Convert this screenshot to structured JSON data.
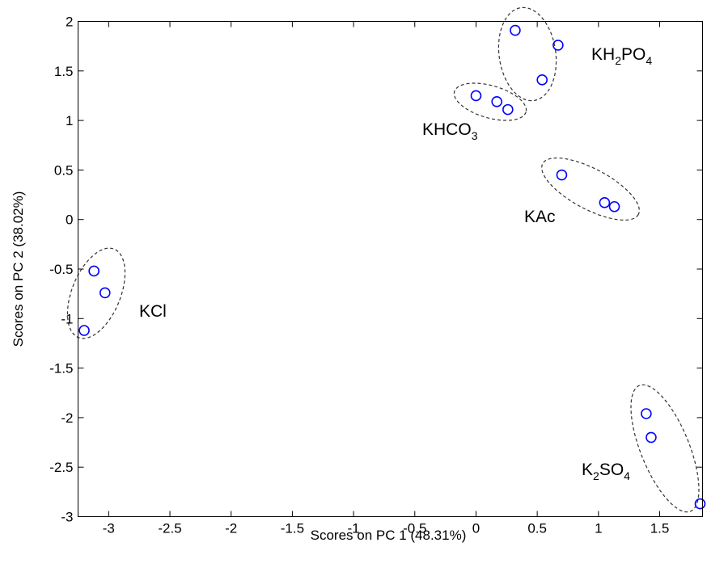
{
  "chart_data": {
    "type": "scatter",
    "xlabel": "Scores on PC 1 (48.31%)",
    "ylabel": "Scores on PC 2 (38.02%)",
    "xlim": [
      -3.25,
      1.85
    ],
    "ylim": [
      -3,
      2
    ],
    "x_ticks": [
      "-3",
      "-2.5",
      "-2",
      "-1.5",
      "-1",
      "-0.5",
      "0",
      "0.5",
      "1",
      "1.5"
    ],
    "y_ticks": [
      "2",
      "1.5",
      "1",
      "0.5",
      "0",
      "-0.5",
      "-1",
      "-1.5",
      "-2",
      "-2.5",
      "-3"
    ],
    "x_tick_values": [
      -3,
      -2.5,
      -2,
      -1.5,
      -1,
      -0.5,
      0,
      0.5,
      1,
      1.5
    ],
    "y_tick_values": [
      2,
      1.5,
      1,
      0.5,
      0,
      -0.5,
      -1,
      -1.5,
      -2,
      -2.5,
      -3
    ],
    "grid": false,
    "marker_color": "#0000ff",
    "cluster_outline_color": "#333333",
    "groups": [
      {
        "label": "KH2PO4",
        "label_parts": [
          {
            "t": "KH"
          },
          {
            "t": "2",
            "sub": true
          },
          {
            "t": "PO"
          },
          {
            "t": "4",
            "sub": true
          }
        ],
        "points": [
          [
            0.32,
            1.91
          ],
          [
            0.67,
            1.76
          ],
          [
            0.54,
            1.41
          ]
        ]
      },
      {
        "label": "KHCO3",
        "label_parts": [
          {
            "t": "KHCO"
          },
          {
            "t": "3",
            "sub": true
          }
        ],
        "points": [
          [
            0.0,
            1.25
          ],
          [
            0.17,
            1.19
          ],
          [
            0.26,
            1.11
          ]
        ]
      },
      {
        "label": "KAc",
        "label_parts": [
          {
            "t": "KAc"
          }
        ],
        "points": [
          [
            0.7,
            0.45
          ],
          [
            1.05,
            0.17
          ],
          [
            1.13,
            0.13
          ]
        ]
      },
      {
        "label": "KCl",
        "label_parts": [
          {
            "t": "KCl"
          }
        ],
        "points": [
          [
            -3.12,
            -0.52
          ],
          [
            -3.03,
            -0.74
          ],
          [
            -3.2,
            -1.12
          ]
        ]
      },
      {
        "label": "K2SO4",
        "label_parts": [
          {
            "t": "K"
          },
          {
            "t": "2",
            "sub": true
          },
          {
            "t": "SO"
          },
          {
            "t": "4",
            "sub": true
          }
        ],
        "points": [
          [
            1.39,
            -1.96
          ],
          [
            1.43,
            -2.2
          ],
          [
            1.83,
            -2.87
          ]
        ]
      }
    ]
  }
}
